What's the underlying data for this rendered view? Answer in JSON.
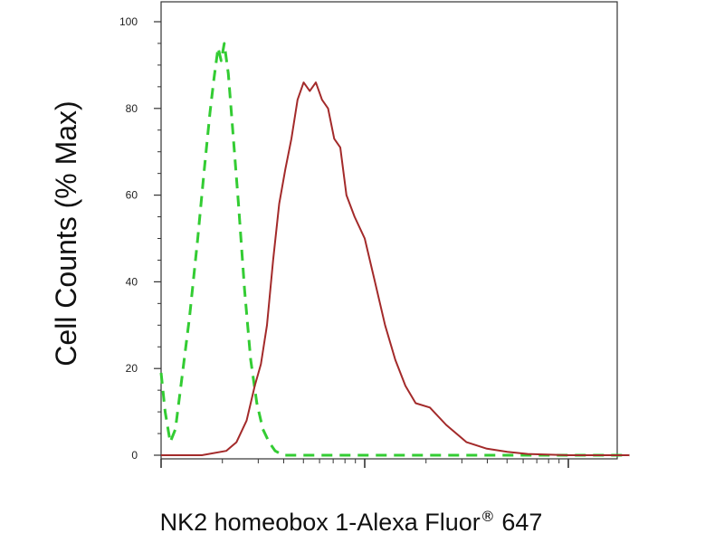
{
  "chart_data": {
    "type": "line",
    "title": "",
    "xlabel": {
      "text": "NK2 homeobox 1-Alexa Fluor",
      "superscript": "®",
      "suffix": " 647"
    },
    "ylabel": "Cell Counts (% Max)",
    "x_scale": "log",
    "x_tick_labels": [],
    "ylim": [
      0,
      100
    ],
    "y_ticks": [
      0,
      20,
      40,
      60,
      80,
      100
    ],
    "y_tick_labels": [
      "0",
      "20",
      "40",
      "60",
      "80",
      "100"
    ],
    "grid": false,
    "series": [
      {
        "style": "dashed",
        "color": "#33cc33",
        "points": [
          [
            0.0,
            19
          ],
          [
            0.02,
            10
          ],
          [
            0.045,
            3
          ],
          [
            0.07,
            6
          ],
          [
            0.1,
            17
          ],
          [
            0.14,
            32
          ],
          [
            0.18,
            50
          ],
          [
            0.21,
            65
          ],
          [
            0.24,
            79
          ],
          [
            0.26,
            87
          ],
          [
            0.28,
            94
          ],
          [
            0.295,
            91
          ],
          [
            0.31,
            95
          ],
          [
            0.33,
            88
          ],
          [
            0.35,
            76
          ],
          [
            0.38,
            58
          ],
          [
            0.41,
            38
          ],
          [
            0.44,
            22
          ],
          [
            0.47,
            12
          ],
          [
            0.5,
            6
          ],
          [
            0.53,
            3
          ],
          [
            0.56,
            1
          ],
          [
            0.6,
            0
          ],
          [
            0.7,
            0
          ],
          [
            1.0,
            0
          ],
          [
            1.3,
            0
          ],
          [
            1.6,
            0
          ],
          [
            2.0,
            0
          ],
          [
            2.3,
            0
          ]
        ]
      },
      {
        "style": "solid",
        "color": "#a32a2a",
        "points": [
          [
            0.0,
            0
          ],
          [
            0.2,
            0
          ],
          [
            0.32,
            1
          ],
          [
            0.37,
            3
          ],
          [
            0.42,
            8
          ],
          [
            0.46,
            16
          ],
          [
            0.49,
            21
          ],
          [
            0.52,
            30
          ],
          [
            0.55,
            45
          ],
          [
            0.58,
            58
          ],
          [
            0.61,
            66
          ],
          [
            0.64,
            73
          ],
          [
            0.67,
            82
          ],
          [
            0.7,
            86
          ],
          [
            0.73,
            84
          ],
          [
            0.76,
            86
          ],
          [
            0.79,
            82
          ],
          [
            0.82,
            80
          ],
          [
            0.85,
            73
          ],
          [
            0.88,
            71
          ],
          [
            0.91,
            60
          ],
          [
            0.95,
            55
          ],
          [
            1.0,
            50
          ],
          [
            1.05,
            40
          ],
          [
            1.1,
            30
          ],
          [
            1.15,
            22
          ],
          [
            1.2,
            16
          ],
          [
            1.25,
            12
          ],
          [
            1.32,
            11
          ],
          [
            1.4,
            7
          ],
          [
            1.5,
            3
          ],
          [
            1.6,
            1.5
          ],
          [
            1.7,
            0.8
          ],
          [
            1.8,
            0.3
          ],
          [
            2.0,
            0
          ],
          [
            2.3,
            0
          ]
        ]
      }
    ]
  }
}
